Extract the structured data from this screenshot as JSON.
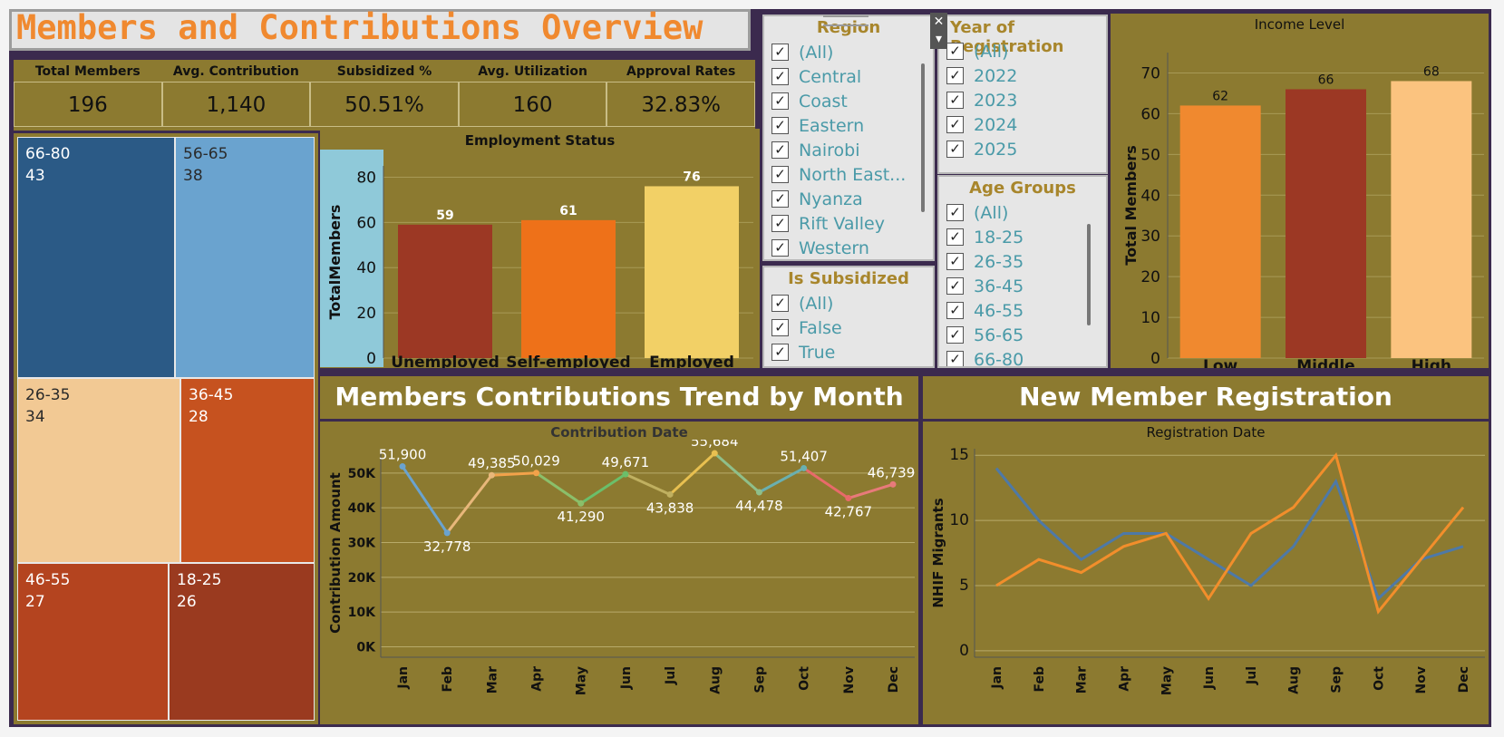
{
  "title": "Members and Contributions Overview",
  "kpis": [
    {
      "label": "Total Members",
      "value": "196"
    },
    {
      "label": "Avg. Contribution",
      "value": "1,140"
    },
    {
      "label": "Subsidized %",
      "value": "50.51%"
    },
    {
      "label": "Avg. Utilization",
      "value": "160"
    },
    {
      "label": "Approval Rates",
      "value": "32.83%"
    }
  ],
  "filters": {
    "region": {
      "title": "Region",
      "items": [
        "(All)",
        "Central",
        "Coast",
        "Eastern",
        "Nairobi",
        "North East...",
        "Nyanza",
        "Rift Valley",
        "Western"
      ]
    },
    "year": {
      "title": "Year of Registration",
      "items": [
        "(All)",
        "2022",
        "2023",
        "2024",
        "2025"
      ]
    },
    "subsidized": {
      "title": "Is Subsidized",
      "items": [
        "(All)",
        "False",
        "True"
      ]
    },
    "age": {
      "title": "Age Groups",
      "items": [
        "(All)",
        "18-25",
        "26-35",
        "36-45",
        "46-55",
        "56-65",
        "66-80"
      ]
    },
    "checkmark": "✓",
    "close_icon": "✕",
    "dropdown_icon": "▾"
  },
  "section_titles": {
    "trend": "Members Contributions Trend by Month",
    "registration": "New Member Registration"
  },
  "colors": {
    "panel": "#8c7a30",
    "background": "#3b2a4e",
    "title_orange": "#f0892f",
    "filter_text": "#4a9aa8"
  },
  "chart_data": [
    {
      "id": "age_treemap",
      "type": "treemap",
      "items": [
        {
          "label": "66-80",
          "value": 43,
          "color": "#2b5a86"
        },
        {
          "label": "56-65",
          "value": 38,
          "color": "#6aa3cf"
        },
        {
          "label": "26-35",
          "value": 34,
          "color": "#f2c994"
        },
        {
          "label": "36-45",
          "value": 28,
          "color": "#c6521f"
        },
        {
          "label": "46-55",
          "value": 27,
          "color": "#b4441f"
        },
        {
          "label": "18-25",
          "value": 26,
          "color": "#9a3a1f"
        }
      ]
    },
    {
      "id": "employment",
      "type": "bar",
      "title": "Employment Status",
      "ylabel": "TotalMembers",
      "categories": [
        "Unemployed",
        "Self-employed",
        "Employed"
      ],
      "values": [
        59,
        61,
        76
      ],
      "colors": [
        "#9c3824",
        "#ee7119",
        "#f2d066"
      ],
      "ylim": [
        0,
        85
      ],
      "yticks": [
        0,
        20,
        40,
        60,
        80
      ]
    },
    {
      "id": "income",
      "type": "bar",
      "title": "Income Level",
      "ylabel": "Total Members",
      "categories": [
        "Low",
        "Middle",
        "High"
      ],
      "values": [
        62,
        66,
        68
      ],
      "colors": [
        "#f0892f",
        "#9c3824",
        "#fbc37f"
      ],
      "ylim": [
        0,
        75
      ],
      "yticks": [
        0,
        10,
        20,
        30,
        40,
        50,
        60,
        70
      ]
    },
    {
      "id": "contrib_trend",
      "type": "line",
      "title": "Contribution Date",
      "ylabel": "Contribution Amount",
      "categories": [
        "Jan",
        "Feb",
        "Mar",
        "Apr",
        "May",
        "Jun",
        "Jul",
        "Aug",
        "Sep",
        "Oct",
        "Nov",
        "Dec"
      ],
      "values": [
        51900,
        32778,
        49385,
        50029,
        41290,
        49671,
        43838,
        55684,
        44478,
        51407,
        42767,
        46739
      ],
      "value_labels": [
        "51,900",
        "32,778",
        "49,385",
        "50,029",
        "41,290",
        "49,671",
        "43,838",
        "55,684",
        "44,478",
        "51,407",
        "42,767",
        "46,739"
      ],
      "ylim": [
        -3000,
        57000
      ],
      "yticks": [
        0,
        10000,
        20000,
        30000,
        40000,
        50000
      ],
      "ytick_labels": [
        "0K",
        "10K",
        "20K",
        "30K",
        "40K",
        "50K"
      ],
      "segment_colors": [
        "#6aa3cf",
        "#e8b77a",
        "#f2a24a",
        "#8bbf6a",
        "#6bbf6a",
        "#c0b060",
        "#e8c050",
        "#8fbf8a",
        "#6ab0b0",
        "#e86a6a",
        "#e87a7a"
      ]
    },
    {
      "id": "registration",
      "type": "line",
      "title": "Registration Date",
      "ylabel": "NHIF Migrants",
      "categories": [
        "Jan",
        "Feb",
        "Mar",
        "Apr",
        "May",
        "Jun",
        "Jul",
        "Aug",
        "Sep",
        "Oct",
        "Nov",
        "Dec"
      ],
      "series": [
        {
          "values": [
            14,
            10,
            7,
            9,
            9,
            7,
            5,
            8,
            13,
            4,
            7,
            8
          ],
          "color": "#4e79a7"
        },
        {
          "values": [
            5,
            7,
            6,
            8,
            9,
            4,
            9,
            11,
            15,
            3,
            7,
            11
          ],
          "color": "#f28e2b"
        }
      ],
      "ylim": [
        -0.5,
        15.5
      ],
      "yticks": [
        0,
        5,
        10,
        15
      ]
    }
  ]
}
